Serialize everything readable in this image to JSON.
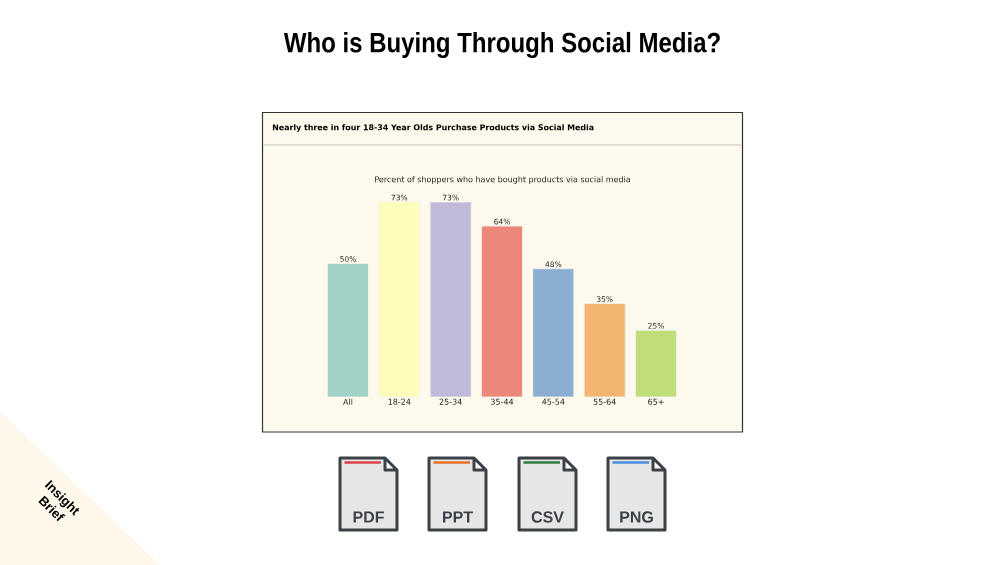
{
  "chart_data": {
    "type": "bar",
    "title": "Who is Buying Through Social Media?",
    "subtitle": "Nearly three in four 18-34 Year Olds Purchase Products via Social Media",
    "categories": [
      "All",
      "18-24",
      "25-34",
      "35-44",
      "45-54",
      "55-64",
      "65+"
    ],
    "values": [
      50,
      73,
      73,
      64,
      48,
      35,
      25
    ],
    "colors": [
      "#a0d2c8",
      "#fffdbb",
      "#bfbad8",
      "#ec877a",
      "#8aaed0",
      "#f2b572",
      "#bfdd78"
    ],
    "value_labels": [
      "50%",
      "73%",
      "73%",
      "64%",
      "48%",
      "35%",
      "25%"
    ],
    "tick_labels": "x",
    "annotations": [
      "Percent of shoppers who have bought products via social media",
      "PDF",
      "PPT",
      "CSV",
      "PNG",
      "Insight Brief"
    ]
  }
}
